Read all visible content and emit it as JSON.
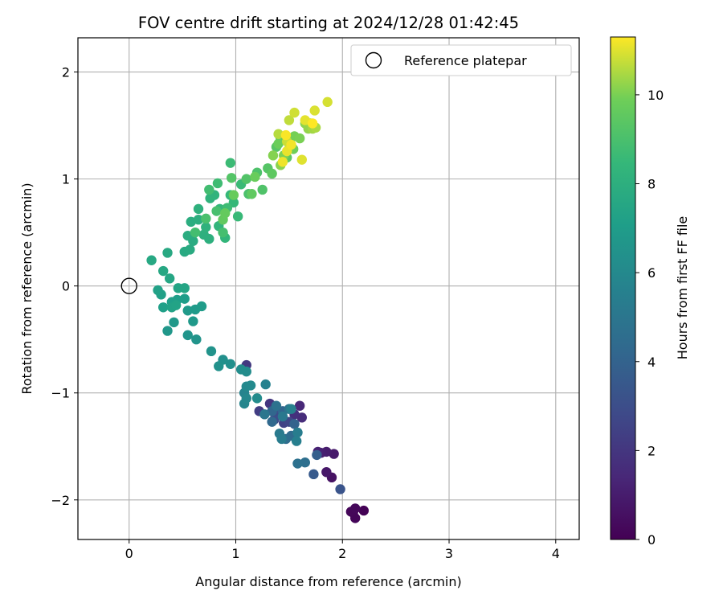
{
  "chart_data": {
    "type": "scatter",
    "title": "FOV centre drift starting at 2024/12/28 01:42:45",
    "xlabel": "Angular distance from reference (arcmin)",
    "ylabel": "Rotation from reference (arcmin)",
    "xlim": [
      -0.48,
      4.22
    ],
    "ylim": [
      -2.37,
      2.32
    ],
    "xticks": [
      0,
      1,
      2,
      3,
      4
    ],
    "yticks": [
      -2,
      -1,
      0,
      1,
      2
    ],
    "grid": true,
    "legend": {
      "placement": "top-right",
      "entries": [
        "Reference platepar"
      ]
    },
    "reference_point": {
      "label": "Reference platepar",
      "x": 0,
      "y": 0
    },
    "colorbar": {
      "label": "Hours from first FF file",
      "range": [
        0,
        11.3
      ],
      "ticks": [
        0,
        2,
        4,
        6,
        8,
        10
      ],
      "colormap": "viridis"
    },
    "series": [
      {
        "name": "Reference platepar",
        "points": [
          [
            0,
            0,
            null
          ]
        ]
      },
      {
        "points": [
          [
            2.2,
            -2.1,
            0.05
          ],
          [
            2.1,
            -2.12,
            0.1
          ],
          [
            2.12,
            -2.17,
            0.15
          ],
          [
            2.08,
            -2.11,
            0.2
          ],
          [
            2.12,
            -2.08,
            0.25
          ],
          [
            1.9,
            -1.79,
            0.6
          ],
          [
            1.85,
            -1.74,
            0.8
          ],
          [
            1.92,
            -1.57,
            0.9
          ],
          [
            1.85,
            -1.55,
            1.0
          ],
          [
            1.8,
            -1.56,
            1.1
          ],
          [
            1.77,
            -1.55,
            1.2
          ],
          [
            1.6,
            -1.12,
            1.4
          ],
          [
            1.62,
            -1.23,
            1.6
          ],
          [
            1.55,
            -1.2,
            1.8
          ],
          [
            1.32,
            -1.1,
            2.0
          ],
          [
            1.1,
            -0.74,
            2.1
          ],
          [
            1.22,
            -1.17,
            2.3
          ],
          [
            1.45,
            -1.28,
            2.5
          ],
          [
            1.5,
            -1.27,
            2.7
          ],
          [
            1.4,
            -1.2,
            2.9
          ],
          [
            1.36,
            -1.25,
            3.0
          ],
          [
            1.98,
            -1.9,
            3.3
          ],
          [
            1.73,
            -1.76,
            3.6
          ],
          [
            1.76,
            -1.58,
            3.8
          ],
          [
            1.55,
            -1.29,
            4.0
          ],
          [
            1.44,
            -1.17,
            4.1
          ],
          [
            1.34,
            -1.17,
            4.2
          ],
          [
            1.34,
            -1.27,
            4.3
          ],
          [
            1.52,
            -1.4,
            4.4
          ],
          [
            1.47,
            -1.43,
            4.5
          ],
          [
            1.65,
            -1.65,
            4.6
          ],
          [
            1.58,
            -1.66,
            4.7
          ],
          [
            1.38,
            -1.12,
            4.8
          ],
          [
            1.5,
            -1.15,
            4.9
          ],
          [
            1.27,
            -1.2,
            5.0
          ],
          [
            1.44,
            -1.22,
            5.1
          ],
          [
            1.41,
            -1.38,
            5.2
          ],
          [
            1.43,
            -1.43,
            5.3
          ],
          [
            1.58,
            -1.37,
            5.4
          ],
          [
            1.57,
            -1.45,
            5.5
          ],
          [
            1.52,
            -1.15,
            5.55
          ],
          [
            1.28,
            -0.92,
            5.6
          ],
          [
            1.08,
            -1.0,
            5.7
          ],
          [
            1.08,
            -1.1,
            5.8
          ],
          [
            1.1,
            -1.05,
            5.9
          ],
          [
            1.1,
            -0.94,
            6.0
          ],
          [
            1.14,
            -0.93,
            6.05
          ],
          [
            1.2,
            -1.05,
            6.1
          ],
          [
            1.1,
            -0.8,
            6.15
          ],
          [
            1.05,
            -0.78,
            6.2
          ],
          [
            0.95,
            -0.73,
            6.3
          ],
          [
            0.88,
            -0.69,
            6.35
          ],
          [
            0.84,
            -0.75,
            6.4
          ],
          [
            0.77,
            -0.61,
            6.5
          ],
          [
            0.63,
            -0.5,
            6.55
          ],
          [
            0.55,
            -0.46,
            6.6
          ],
          [
            0.36,
            -0.42,
            6.7
          ],
          [
            0.42,
            -0.34,
            6.75
          ],
          [
            0.6,
            -0.33,
            6.8
          ],
          [
            0.55,
            -0.23,
            6.85
          ],
          [
            0.62,
            -0.22,
            6.9
          ],
          [
            0.68,
            -0.19,
            6.95
          ],
          [
            0.52,
            -0.12,
            7.0
          ],
          [
            0.45,
            -0.13,
            7.05
          ],
          [
            0.4,
            -0.15,
            7.1
          ],
          [
            0.32,
            -0.2,
            7.15
          ],
          [
            0.3,
            -0.08,
            7.2
          ],
          [
            0.27,
            -0.04,
            7.25
          ],
          [
            0.4,
            -0.2,
            7.3
          ],
          [
            0.44,
            -0.18,
            7.35
          ],
          [
            0.46,
            -0.02,
            7.4
          ],
          [
            0.52,
            -0.02,
            7.45
          ],
          [
            0.38,
            0.07,
            7.5
          ],
          [
            0.32,
            0.14,
            7.55
          ],
          [
            0.21,
            0.24,
            7.6
          ],
          [
            0.36,
            0.31,
            7.65
          ],
          [
            0.52,
            0.32,
            7.7
          ],
          [
            0.57,
            0.34,
            7.75
          ],
          [
            0.6,
            0.42,
            7.8
          ],
          [
            0.55,
            0.47,
            7.85
          ],
          [
            0.58,
            0.6,
            7.9
          ],
          [
            0.65,
            0.62,
            7.95
          ],
          [
            0.7,
            0.48,
            8.0
          ],
          [
            0.75,
            0.44,
            8.05
          ],
          [
            0.65,
            0.72,
            8.1
          ],
          [
            0.72,
            0.55,
            8.15
          ],
          [
            0.76,
            0.82,
            8.2
          ],
          [
            0.8,
            0.85,
            8.25
          ],
          [
            0.84,
            0.56,
            8.3
          ],
          [
            0.9,
            0.45,
            8.35
          ],
          [
            0.85,
            0.72,
            8.4
          ],
          [
            0.95,
            0.85,
            8.45
          ],
          [
            0.98,
            0.78,
            8.5
          ],
          [
            1.02,
            0.65,
            8.55
          ],
          [
            1.05,
            0.95,
            8.6
          ],
          [
            0.95,
            1.15,
            8.65
          ],
          [
            0.92,
            0.73,
            8.7
          ],
          [
            0.83,
            0.96,
            8.75
          ],
          [
            0.75,
            0.9,
            8.8
          ],
          [
            0.62,
            0.5,
            8.85
          ],
          [
            0.88,
            0.5,
            8.9
          ],
          [
            0.82,
            0.7,
            8.95
          ],
          [
            0.72,
            0.63,
            9.0
          ],
          [
            1.12,
            0.86,
            9.05
          ],
          [
            1.2,
            1.06,
            9.1
          ],
          [
            1.25,
            0.9,
            9.15
          ],
          [
            1.1,
            1.0,
            9.2
          ],
          [
            0.96,
            1.01,
            9.25
          ],
          [
            1.3,
            1.1,
            9.3
          ],
          [
            1.38,
            1.3,
            9.35
          ],
          [
            1.42,
            1.38,
            9.4
          ],
          [
            1.48,
            1.2,
            9.45
          ],
          [
            1.34,
            1.05,
            9.5
          ],
          [
            1.15,
            0.86,
            9.55
          ],
          [
            0.88,
            0.62,
            9.6
          ],
          [
            0.9,
            0.68,
            9.65
          ],
          [
            0.98,
            0.85,
            9.7
          ],
          [
            1.18,
            1.02,
            9.75
          ],
          [
            1.4,
            1.33,
            9.8
          ],
          [
            1.5,
            1.28,
            9.85
          ],
          [
            1.54,
            1.28,
            9.9
          ],
          [
            1.55,
            1.4,
            9.95
          ],
          [
            1.6,
            1.38,
            10.0
          ],
          [
            1.45,
            1.22,
            10.05
          ],
          [
            1.35,
            1.22,
            10.1
          ],
          [
            1.42,
            1.13,
            10.15
          ],
          [
            1.65,
            1.52,
            10.2
          ],
          [
            1.68,
            1.47,
            10.25
          ],
          [
            1.7,
            1.52,
            10.3
          ],
          [
            1.72,
            1.47,
            10.4
          ],
          [
            1.75,
            1.48,
            10.5
          ],
          [
            1.4,
            1.42,
            10.6
          ],
          [
            1.5,
            1.55,
            10.7
          ],
          [
            1.48,
            1.35,
            10.8
          ],
          [
            1.55,
            1.62,
            10.85
          ],
          [
            1.86,
            1.72,
            10.9
          ],
          [
            1.74,
            1.64,
            10.95
          ],
          [
            1.62,
            1.18,
            11.0
          ],
          [
            1.65,
            1.55,
            11.05
          ],
          [
            1.48,
            1.26,
            11.1
          ],
          [
            1.44,
            1.16,
            11.15
          ],
          [
            1.52,
            1.32,
            11.2
          ],
          [
            1.47,
            1.41,
            11.25
          ],
          [
            1.72,
            1.52,
            11.3
          ]
        ]
      }
    ]
  }
}
